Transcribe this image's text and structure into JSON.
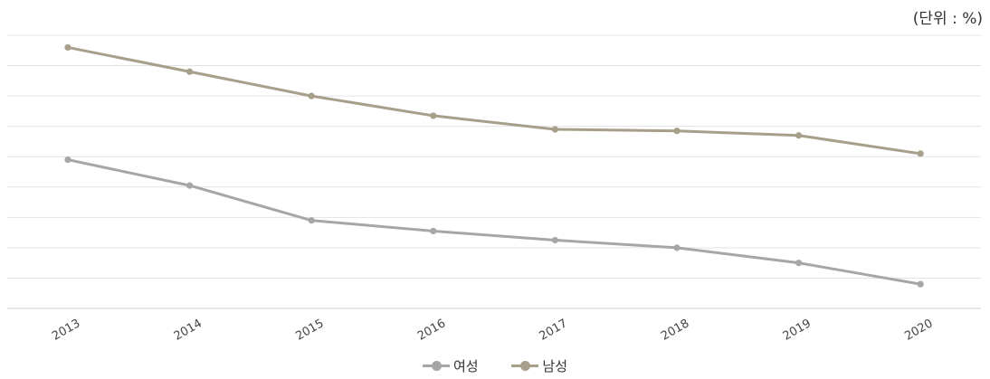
{
  "chart_data": {
    "type": "line",
    "unit_label": "(단위 : %)",
    "categories": [
      "2013",
      "2014",
      "2015",
      "2016",
      "2017",
      "2018",
      "2019",
      "2020"
    ],
    "ylim": [
      0,
      9
    ],
    "grid": true,
    "legend_position": "bottom-center",
    "series": [
      {
        "name": "여성",
        "color": "#a6a6a6",
        "values": [
          4.9,
          4.05,
          2.9,
          2.55,
          2.25,
          2.0,
          1.5,
          0.8
        ]
      },
      {
        "name": "남성",
        "color": "#a89f8a",
        "values": [
          8.6,
          7.8,
          7.0,
          6.35,
          5.9,
          5.85,
          5.7,
          5.1
        ]
      }
    ]
  }
}
